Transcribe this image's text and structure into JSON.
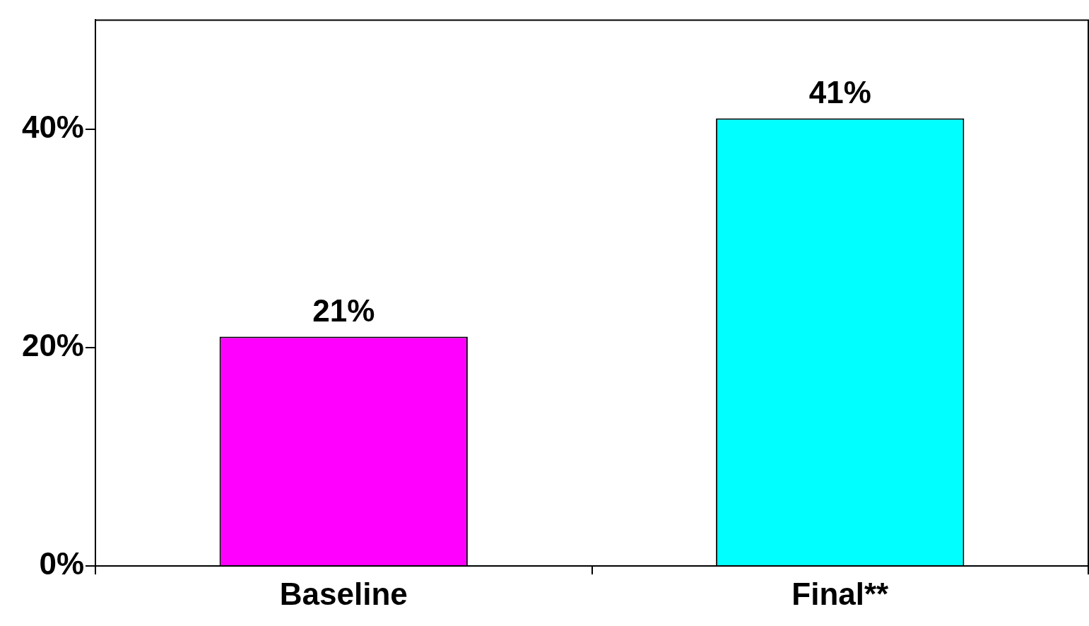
{
  "chart_data": {
    "type": "bar",
    "categories": [
      "Baseline",
      "Final**"
    ],
    "values": [
      21,
      41
    ],
    "colors": [
      "#ff00ff",
      "#00ffff"
    ],
    "value_labels": [
      "21%",
      "41%"
    ],
    "ylim": [
      0,
      50
    ],
    "yticks": [
      {
        "value": 0,
        "label": "0%"
      },
      {
        "value": 20,
        "label": "20%"
      },
      {
        "value": 40,
        "label": "40%"
      }
    ],
    "grid": false,
    "legend": false
  }
}
